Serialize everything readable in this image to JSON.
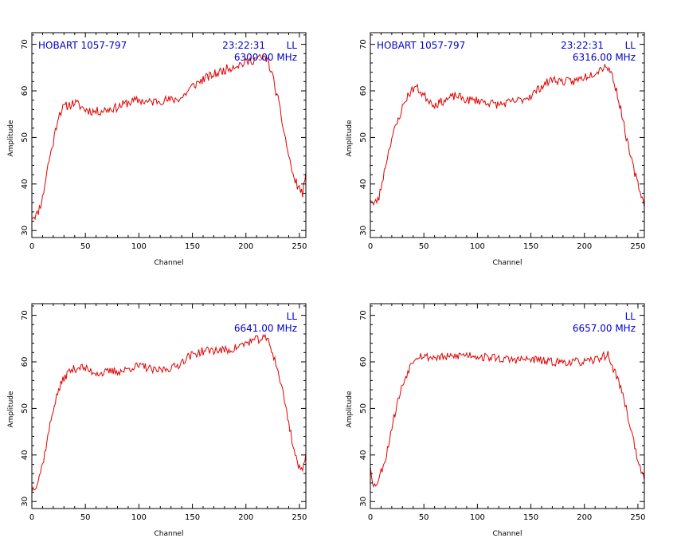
{
  "colors": {
    "trace": "#e00000",
    "annotation": "#0000cc",
    "frame": "#000000",
    "background": "#ffffff"
  },
  "chart_data": [
    {
      "type": "line",
      "xlabel": "Channel",
      "ylabel": "Amplitude",
      "xlim": [
        0,
        256
      ],
      "ylim": [
        28.5,
        72.5
      ],
      "xticks": [
        0,
        50,
        100,
        150,
        200,
        250
      ],
      "yticks": [
        30,
        40,
        50,
        60,
        70
      ],
      "grid": false,
      "annotations": {
        "source": "HOBART 1057-797",
        "time": "23:22:31",
        "pol": "LL",
        "freq": "6300.00 MHz"
      },
      "profile": [
        [
          0,
          33
        ],
        [
          5,
          33.5
        ],
        [
          10,
          37
        ],
        [
          15,
          44
        ],
        [
          20,
          49
        ],
        [
          25,
          55
        ],
        [
          30,
          56.5
        ],
        [
          40,
          57.5
        ],
        [
          50,
          56
        ],
        [
          60,
          55.5
        ],
        [
          70,
          56
        ],
        [
          80,
          56.5
        ],
        [
          90,
          57.5
        ],
        [
          100,
          58
        ],
        [
          110,
          57.5
        ],
        [
          120,
          58
        ],
        [
          130,
          58
        ],
        [
          140,
          58.5
        ],
        [
          150,
          61
        ],
        [
          160,
          62.5
        ],
        [
          170,
          63.5
        ],
        [
          180,
          64.5
        ],
        [
          190,
          65.5
        ],
        [
          200,
          66
        ],
        [
          210,
          67
        ],
        [
          220,
          67
        ],
        [
          225,
          63
        ],
        [
          230,
          58
        ],
        [
          235,
          52
        ],
        [
          240,
          46
        ],
        [
          245,
          41
        ],
        [
          250,
          39
        ],
        [
          253,
          38
        ],
        [
          256,
          41.5
        ]
      ],
      "noise": 1.0,
      "seed": 11
    },
    {
      "type": "line",
      "xlabel": "Channel",
      "ylabel": "Amplitude",
      "xlim": [
        0,
        256
      ],
      "ylim": [
        28.5,
        72.5
      ],
      "xticks": [
        0,
        50,
        100,
        150,
        200,
        250
      ],
      "yticks": [
        30,
        40,
        50,
        60,
        70
      ],
      "grid": false,
      "annotations": {
        "source": "HOBART 1057-797",
        "time": "23:22:31",
        "pol": "LL",
        "freq": "6316.00 MHz"
      },
      "profile": [
        [
          0,
          37
        ],
        [
          3,
          35.5
        ],
        [
          8,
          37
        ],
        [
          15,
          45
        ],
        [
          20,
          50
        ],
        [
          25,
          53
        ],
        [
          30,
          56.5
        ],
        [
          35,
          59
        ],
        [
          42,
          61
        ],
        [
          50,
          59
        ],
        [
          60,
          57
        ],
        [
          70,
          58
        ],
        [
          80,
          59
        ],
        [
          90,
          58
        ],
        [
          100,
          58
        ],
        [
          110,
          57.5
        ],
        [
          120,
          57
        ],
        [
          130,
          57.5
        ],
        [
          140,
          58
        ],
        [
          150,
          59
        ],
        [
          160,
          61
        ],
        [
          170,
          62.5
        ],
        [
          180,
          62
        ],
        [
          190,
          62
        ],
        [
          200,
          63
        ],
        [
          210,
          64
        ],
        [
          220,
          65.5
        ],
        [
          225,
          64
        ],
        [
          230,
          60
        ],
        [
          235,
          55
        ],
        [
          240,
          49
        ],
        [
          245,
          44
        ],
        [
          250,
          40
        ],
        [
          254,
          37
        ],
        [
          256,
          35.5
        ]
      ],
      "noise": 0.9,
      "seed": 23
    },
    {
      "type": "line",
      "xlabel": "Channel",
      "ylabel": "Amplitude",
      "xlim": [
        0,
        256
      ],
      "ylim": [
        28.5,
        72.5
      ],
      "xticks": [
        0,
        50,
        100,
        150,
        200,
        250
      ],
      "yticks": [
        30,
        40,
        50,
        60,
        70
      ],
      "grid": false,
      "annotations": {
        "source": "",
        "time": "",
        "pol": "LL",
        "freq": "6641.00 MHz"
      },
      "profile": [
        [
          0,
          32.5
        ],
        [
          5,
          34
        ],
        [
          10,
          38
        ],
        [
          15,
          44
        ],
        [
          20,
          50
        ],
        [
          25,
          54
        ],
        [
          30,
          56.5
        ],
        [
          35,
          58
        ],
        [
          45,
          59
        ],
        [
          55,
          58
        ],
        [
          65,
          57.5
        ],
        [
          75,
          58
        ],
        [
          85,
          58
        ],
        [
          95,
          59
        ],
        [
          105,
          59
        ],
        [
          115,
          58
        ],
        [
          125,
          58.5
        ],
        [
          135,
          59
        ],
        [
          145,
          61
        ],
        [
          155,
          62
        ],
        [
          165,
          62.5
        ],
        [
          175,
          62.5
        ],
        [
          185,
          62.5
        ],
        [
          195,
          63.5
        ],
        [
          205,
          64.5
        ],
        [
          215,
          65
        ],
        [
          220,
          65
        ],
        [
          225,
          62
        ],
        [
          230,
          58
        ],
        [
          235,
          53
        ],
        [
          240,
          47
        ],
        [
          245,
          41
        ],
        [
          250,
          37
        ],
        [
          253,
          36.5
        ],
        [
          256,
          41
        ]
      ],
      "noise": 0.9,
      "seed": 37
    },
    {
      "type": "line",
      "xlabel": "Channel",
      "ylabel": "Amplitude",
      "xlim": [
        0,
        256
      ],
      "ylim": [
        28.5,
        72.5
      ],
      "xticks": [
        0,
        50,
        100,
        150,
        200,
        250
      ],
      "yticks": [
        30,
        40,
        50,
        60,
        70
      ],
      "grid": false,
      "annotations": {
        "source": "",
        "time": "",
        "pol": "LL",
        "freq": "6657.00 MHz"
      },
      "profile": [
        [
          0,
          38
        ],
        [
          3,
          33
        ],
        [
          8,
          35
        ],
        [
          15,
          40
        ],
        [
          20,
          46
        ],
        [
          25,
          51
        ],
        [
          30,
          55
        ],
        [
          35,
          58
        ],
        [
          40,
          60.5
        ],
        [
          45,
          61.5
        ],
        [
          55,
          61
        ],
        [
          65,
          61
        ],
        [
          75,
          61
        ],
        [
          85,
          61.5
        ],
        [
          95,
          61.5
        ],
        [
          105,
          61
        ],
        [
          115,
          61
        ],
        [
          125,
          60.5
        ],
        [
          135,
          60.5
        ],
        [
          145,
          60.5
        ],
        [
          155,
          60.5
        ],
        [
          165,
          60
        ],
        [
          175,
          60
        ],
        [
          185,
          60
        ],
        [
          195,
          60
        ],
        [
          205,
          60
        ],
        [
          215,
          61
        ],
        [
          222,
          61.5
        ],
        [
          226,
          59
        ],
        [
          232,
          56
        ],
        [
          238,
          51
        ],
        [
          243,
          46
        ],
        [
          248,
          41
        ],
        [
          252,
          37
        ],
        [
          256,
          34.5
        ]
      ],
      "noise": 0.9,
      "seed": 53
    }
  ]
}
